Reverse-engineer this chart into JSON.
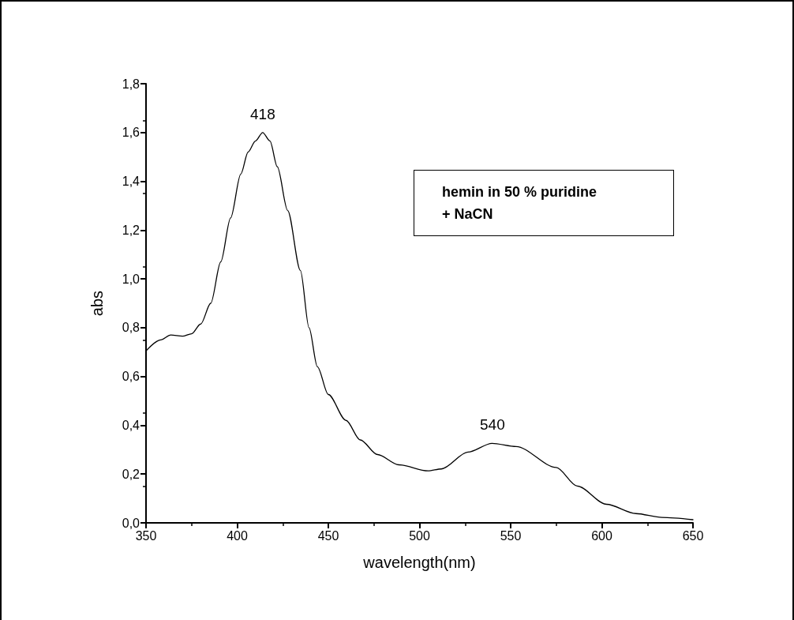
{
  "chart_data": {
    "type": "line",
    "xlabel": "wavelength(nm)",
    "ylabel": "abs",
    "x": [
      350,
      358,
      363.6,
      370,
      375,
      380,
      385.5,
      391,
      396.4,
      402,
      406,
      410,
      414,
      418,
      422,
      427.7,
      434.7,
      439.4,
      444,
      450,
      459.7,
      467.5,
      477,
      488.6,
      504.7,
      512,
      526.6,
      539.8,
      553,
      575,
      586.5,
      602.6,
      618.7,
      633,
      650
    ],
    "series": [
      {
        "color": "#000000",
        "values": [
          0.705,
          0.75,
          0.77,
          0.765,
          0.775,
          0.815,
          0.9,
          1.07,
          1.25,
          1.43,
          1.52,
          1.565,
          1.6,
          1.565,
          1.46,
          1.28,
          1.034,
          0.8,
          0.64,
          0.526,
          0.42,
          0.34,
          0.28,
          0.238,
          0.213,
          0.221,
          0.29,
          0.326,
          0.313,
          0.227,
          0.151,
          0.076,
          0.038,
          0.022,
          0.013
        ]
      }
    ],
    "xlim": [
      350,
      650
    ],
    "xticks": [
      350,
      400,
      450,
      500,
      550,
      600,
      650
    ],
    "ylim": [
      0,
      1.8
    ],
    "yticks": [
      {
        "value": 0,
        "label": "0,0"
      },
      {
        "value": 0.2,
        "label": "0,2"
      },
      {
        "value": 0.4,
        "label": "0,4"
      },
      {
        "value": 0.6,
        "label": "0,6"
      },
      {
        "value": 0.8,
        "label": "0,8"
      },
      {
        "value": 1,
        "label": "1,0"
      },
      {
        "value": 1.2,
        "label": "1,2"
      },
      {
        "value": 1.4,
        "label": "1,4"
      },
      {
        "value": 1.6,
        "label": "1,6"
      },
      {
        "value": 1.8,
        "label": "1,8"
      }
    ],
    "annotations": [
      {
        "text": "418",
        "x": 414,
        "y": 1.6
      },
      {
        "text": "540",
        "x": 540,
        "y": 0.326
      },
      "hemin in 50 % puridine\n+ NaCN"
    ],
    "grid": false,
    "marker": "none",
    "line_style": "solid"
  }
}
